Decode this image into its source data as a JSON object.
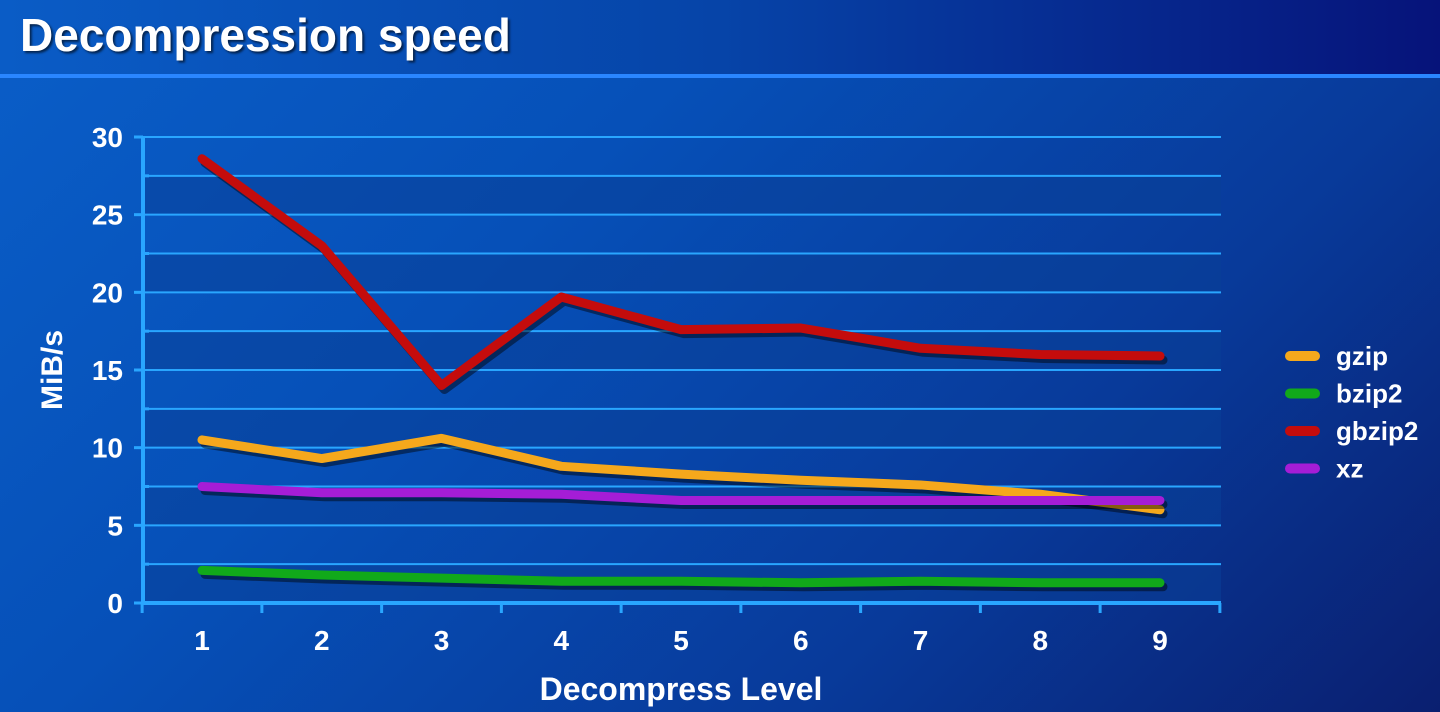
{
  "title": "Decompression speed",
  "chart_data": {
    "type": "line",
    "title": "Decompression speed",
    "xlabel": "Decompress Level",
    "ylabel": "MiB/s",
    "x": [
      1,
      2,
      3,
      4,
      5,
      6,
      7,
      8,
      9
    ],
    "ylim": [
      0,
      30
    ],
    "yticks": [
      0,
      5,
      10,
      15,
      20,
      25,
      30
    ],
    "grid": true,
    "legend_position": "right",
    "series": [
      {
        "name": "gzip",
        "color": "#f5a81c",
        "values": [
          10.5,
          9.3,
          10.6,
          8.8,
          8.3,
          7.9,
          7.6,
          7.0,
          6.0
        ]
      },
      {
        "name": "bzip2",
        "color": "#11a91a",
        "values": [
          2.1,
          1.8,
          1.6,
          1.4,
          1.4,
          1.3,
          1.4,
          1.3,
          1.3
        ]
      },
      {
        "name": "gbzip2",
        "color": "#c40c0c",
        "values": [
          28.6,
          23.0,
          14.0,
          19.7,
          17.6,
          17.7,
          16.4,
          16.0,
          15.9
        ]
      },
      {
        "name": "xz",
        "color": "#a51dd6",
        "values": [
          7.5,
          7.1,
          7.1,
          7.0,
          6.6,
          6.6,
          6.6,
          6.6,
          6.6
        ]
      }
    ]
  }
}
